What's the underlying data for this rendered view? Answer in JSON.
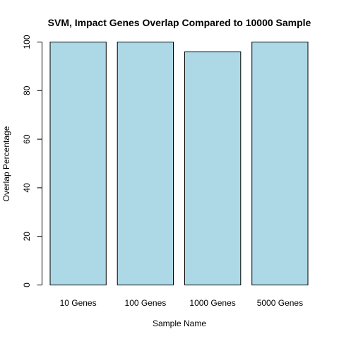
{
  "chart_data": {
    "type": "bar",
    "title": "SVM, Impact Genes Overlap Compared to 10000 Sample",
    "xlabel": "Sample Name",
    "ylabel": "Overlap Percentage",
    "categories": [
      "10 Genes",
      "100 Genes",
      "1000 Genes",
      "5000 Genes"
    ],
    "values": [
      100,
      100,
      96,
      100
    ],
    "ylim": [
      0,
      100
    ],
    "yticks": [
      "0",
      "20",
      "40",
      "60",
      "80",
      "100"
    ],
    "bar_color": "#add8e6",
    "grid": false,
    "legend": "none"
  }
}
